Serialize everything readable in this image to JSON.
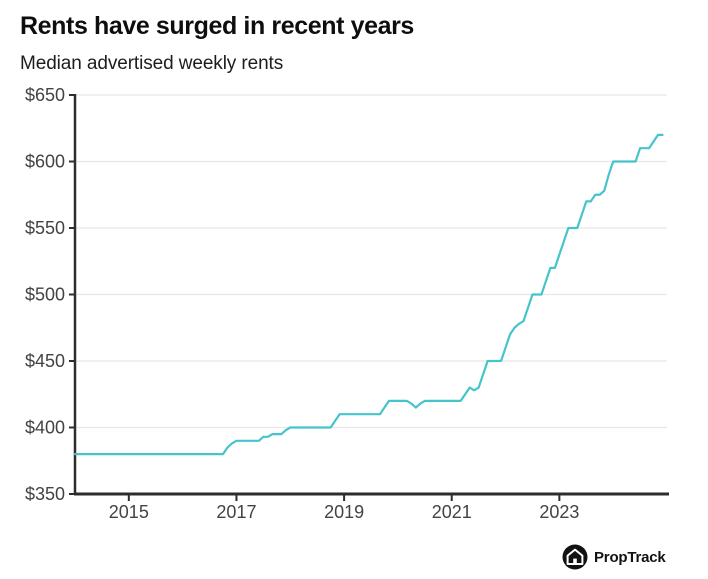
{
  "header": {
    "title": "Rents have surged in recent years",
    "subtitle": "Median advertised weekly rents"
  },
  "footer": {
    "brand": "PropTrack",
    "logo_icon": "house-in-circle-icon"
  },
  "colors": {
    "line": "#45c4cb",
    "axis": "#2d2d2d",
    "grid": "#e7e7e7",
    "tick_label": "#434343",
    "title": "#0e0e0e"
  },
  "chart_data": {
    "type": "line",
    "title": "Rents have surged in recent years",
    "subtitle": "Median advertised weekly rents",
    "unit": "AUD per week",
    "frequency": "monthly",
    "x_start": "2014-01",
    "x_end": "2024-12",
    "xlim_years": [
      2014.0,
      2025.0
    ],
    "ylim": [
      350,
      650
    ],
    "y_tick_step": 50,
    "y_tick_labels": [
      "$350",
      "$400",
      "$450",
      "$500",
      "$550",
      "$600",
      "$650"
    ],
    "x_tick_years": [
      2015,
      2017,
      2019,
      2021,
      2023
    ],
    "x_tick_labels": [
      "2015",
      "2017",
      "2019",
      "2021",
      "2023"
    ],
    "grid": "horizontal",
    "legend": "none",
    "series": [
      {
        "name": "Median advertised weekly rent",
        "monthly_values": [
          380,
          380,
          380,
          380,
          380,
          380,
          380,
          380,
          380,
          380,
          380,
          380,
          380,
          380,
          380,
          380,
          380,
          380,
          380,
          380,
          380,
          380,
          380,
          380,
          380,
          380,
          380,
          380,
          380,
          380,
          380,
          380,
          380,
          380,
          385,
          388,
          390,
          390,
          390,
          390,
          390,
          390,
          393,
          393,
          395,
          395,
          395,
          398,
          400,
          400,
          400,
          400,
          400,
          400,
          400,
          400,
          400,
          400,
          405,
          410,
          410,
          410,
          410,
          410,
          410,
          410,
          410,
          410,
          410,
          415,
          420,
          420,
          420,
          420,
          420,
          418,
          415,
          418,
          420,
          420,
          420,
          420,
          420,
          420,
          420,
          420,
          420,
          425,
          430,
          428,
          430,
          440,
          450,
          450,
          450,
          450,
          460,
          470,
          475,
          478,
          480,
          490,
          500,
          500,
          500,
          510,
          520,
          520,
          530,
          540,
          550,
          550,
          550,
          560,
          570,
          570,
          575,
          575,
          578,
          590,
          600,
          600,
          600,
          600,
          600,
          600,
          610,
          610,
          610,
          615,
          620,
          620
        ]
      }
    ]
  }
}
